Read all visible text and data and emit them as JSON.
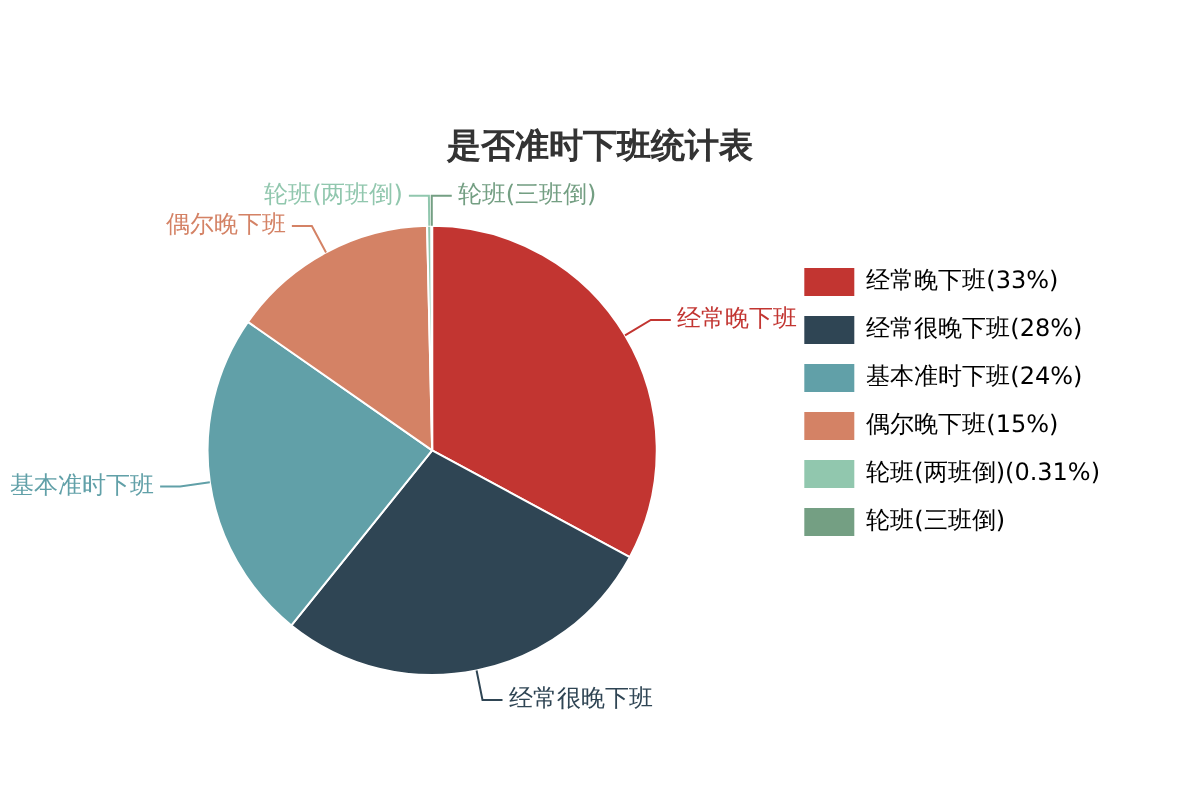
{
  "chart_data": {
    "type": "pie",
    "title": "是否准时下班统计表",
    "categories": [
      "经常晚下班",
      "经常很晚下班",
      "基本准时下班",
      "偶尔晚下班",
      "轮班(两班倒)",
      "轮班(三班倒)"
    ],
    "values": [
      33,
      28,
      24,
      15,
      0.31,
      0.05
    ],
    "value_labels": [
      "(33%)",
      "(28%)",
      "(24%)",
      "(15%)",
      "(0.31%)",
      null
    ],
    "colors": [
      "#c23531",
      "#2f4554",
      "#61a0a8",
      "#d48265",
      "#91c7ae",
      "#749f83"
    ],
    "legend": "right"
  }
}
